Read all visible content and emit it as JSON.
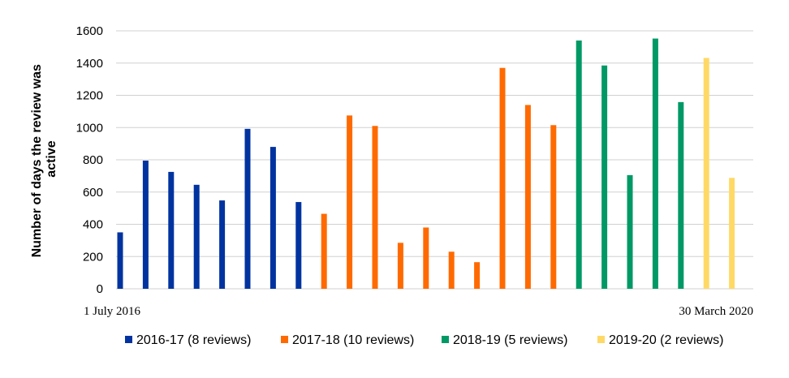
{
  "chart_data": {
    "type": "bar",
    "ylabel_lines": [
      "Number of days the review was",
      "active"
    ],
    "ylim": [
      0,
      1600
    ],
    "yticks": [
      0,
      200,
      400,
      600,
      800,
      1000,
      1200,
      1400,
      1600
    ],
    "grid": true,
    "x_start_label": "1 July 2016",
    "x_end_label": "30 March 2020",
    "legend_position": "bottom",
    "series": [
      {
        "name": "2016-17 (8 reviews)",
        "color": "#0033a0",
        "values": [
          350,
          795,
          725,
          645,
          548,
          992,
          880,
          538
        ]
      },
      {
        "name": "2017-18 (10 reviews)",
        "color": "#ff6a00",
        "values": [
          465,
          1075,
          1010,
          285,
          380,
          230,
          165,
          1370,
          1140,
          1015
        ]
      },
      {
        "name": "2018-19 (5 reviews)",
        "color": "#009966",
        "values": [
          1540,
          1385,
          705,
          1552,
          1158
        ]
      },
      {
        "name": "2019-20 (2 reviews)",
        "color": "#ffd966",
        "values": [
          1432,
          688
        ]
      }
    ]
  }
}
